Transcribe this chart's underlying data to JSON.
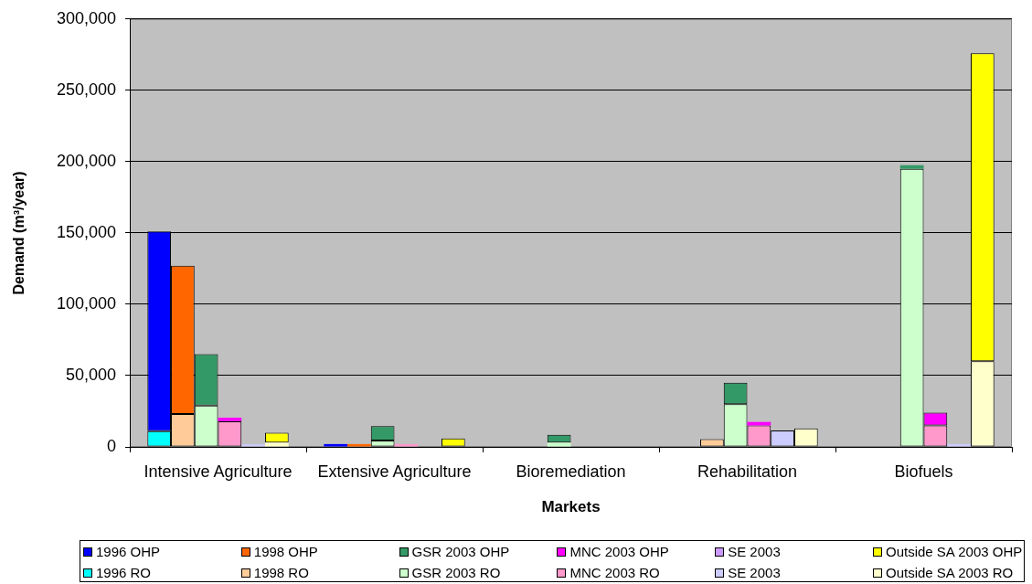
{
  "chart_data": {
    "type": "bar",
    "xlabel": "Markets",
    "ylabel": "Demand (m³/year)",
    "categories": [
      "Intensive Agriculture",
      "Extensive Agriculture",
      "Bioremediation",
      "Rehabilitation",
      "Biofuels"
    ],
    "series": [
      {
        "name": "1996 OHP",
        "color": "#0000ff",
        "values": [
          140000,
          2000,
          null,
          null,
          null
        ],
        "base": [
          11000,
          0,
          null,
          null,
          null
        ]
      },
      {
        "name": "1998 OHP",
        "color": "#ff6600",
        "values": [
          104000,
          2000,
          null,
          null,
          null
        ],
        "base": [
          23000,
          0,
          null,
          null,
          null
        ]
      },
      {
        "name": "GSR 2003 OHP",
        "color": "#339966",
        "values": [
          36000,
          10000,
          5500,
          15000,
          2500
        ],
        "base": [
          29000,
          4500,
          3000,
          30000,
          195000
        ]
      },
      {
        "name": "MNC 2003 OHP",
        "color": "#ff00ff",
        "values": [
          2500,
          null,
          null,
          2500,
          9000
        ],
        "base": [
          18000,
          null,
          null,
          15000,
          15000
        ]
      },
      {
        "name": "SE 2003",
        "color": "#cc99ff",
        "values": [
          null,
          null,
          null,
          null,
          null
        ],
        "base": [
          null,
          null,
          null,
          null,
          null
        ]
      },
      {
        "name": "Outside SA 2003 OHP",
        "color": "#ffff00",
        "values": [
          7000,
          6000,
          null,
          null,
          216000
        ],
        "base": [
          3000,
          0,
          null,
          null,
          60000
        ]
      },
      {
        "name": "1996 RO",
        "color": "#00ffff",
        "values": [
          11000,
          null,
          null,
          null,
          null
        ]
      },
      {
        "name": "1998 RO",
        "color": "#ffcc99",
        "values": [
          23000,
          null,
          null,
          5500,
          null
        ]
      },
      {
        "name": "GSR 2003 RO",
        "color": "#ccffcc",
        "values": [
          29000,
          4500,
          3000,
          30000,
          195000
        ]
      },
      {
        "name": "MNC 2003 RO",
        "color": "#ff99cc",
        "values": [
          18000,
          2000,
          null,
          15000,
          15000
        ]
      },
      {
        "name": "SE 2003",
        "color": "#ccccff",
        "values": [
          1800,
          null,
          null,
          11500,
          2000
        ]
      },
      {
        "name": "Outside SA 2003 RO",
        "color": "#ffffcc",
        "values": [
          3000,
          null,
          null,
          13000,
          60000
        ]
      }
    ],
    "ylim": [
      0,
      300000
    ],
    "yticks": [
      {
        "value": 0,
        "label": "0"
      },
      {
        "value": 50000,
        "label": "50,000"
      },
      {
        "value": 100000,
        "label": "100,000"
      },
      {
        "value": 150000,
        "label": "150,000"
      },
      {
        "value": 200000,
        "label": "200,000"
      },
      {
        "value": 250000,
        "label": "250,000"
      },
      {
        "value": 300000,
        "label": "300,000"
      }
    ],
    "grid": "y",
    "legend": "bottom"
  }
}
